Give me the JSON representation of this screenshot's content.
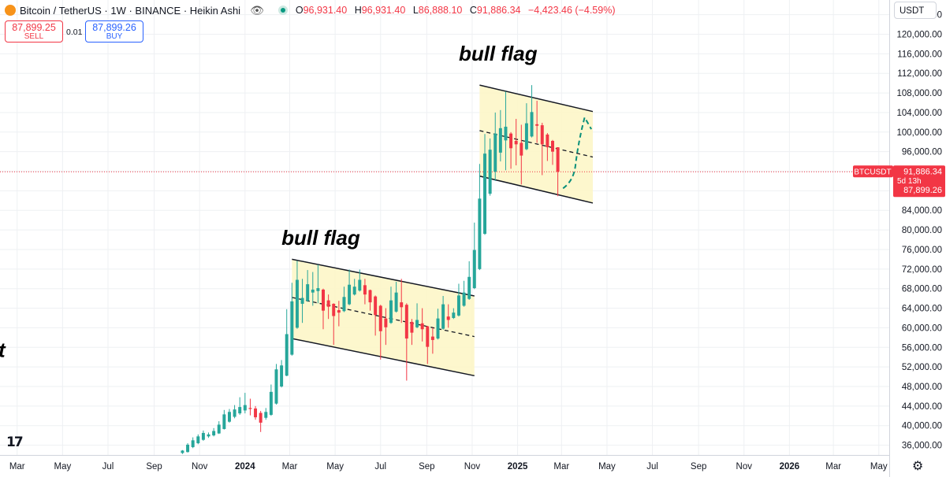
{
  "header": {
    "title": "Bitcoin / TetherUS · 1W · BINANCE · Heikin Ashi",
    "ohlc": [
      {
        "key": "O",
        "value": "96,931.40"
      },
      {
        "key": "H",
        "value": "96,931.40"
      },
      {
        "key": "L",
        "value": "86,888.10"
      },
      {
        "key": "C",
        "value": "91,886.34"
      }
    ],
    "change": "−4,423.46 (−4.59%)",
    "icons": [
      "bitcoin-logo-icon",
      "eye-icon",
      "live-status-icon"
    ]
  },
  "trade": {
    "sell_price": "87,899.25",
    "sell_label": "SELL",
    "spread": "0.01",
    "buy_price": "87,899.26",
    "buy_label": "BUY"
  },
  "currency": "USDT",
  "price_labels": {
    "symbol": "BTCUSDT",
    "current": "91,886.34",
    "countdown": "5d 13h",
    "bid": "87,899.26"
  },
  "colors": {
    "up": "#26a69a",
    "down": "#f23645",
    "channel_fill": "#fdf6c8",
    "projection": "#0a8f7a",
    "price_line": "#f23645"
  },
  "chart_data": {
    "type": "candlestick",
    "style": "Heikin Ashi",
    "interval": "1W",
    "ylim": [
      34000,
      127000
    ],
    "y_ticks": [
      36000,
      40000,
      44000,
      48000,
      52000,
      56000,
      60000,
      64000,
      68000,
      72000,
      76000,
      80000,
      84000,
      88000,
      92000,
      96000,
      100000,
      104000,
      108000,
      112000,
      116000,
      120000,
      124000
    ],
    "y_tick_labels": [
      "36,000.00",
      "40,000.00",
      "44,000.00",
      "48,000.00",
      "52,000.00",
      "56,000.00",
      "60,000.00",
      "64,000.00",
      "68,000.00",
      "72,000.00",
      "76,000.00",
      "80,000.00",
      "84,000.00",
      "88,000.00",
      "92,000.00",
      "96,000.00",
      "100,000.00",
      "104,000.00",
      "108,000.00",
      "112,000.00",
      "116,000.00",
      "120,000.00",
      "124,000.00"
    ],
    "x_range": [
      "2023-02-06",
      "2026-05-15"
    ],
    "x_ticks": [
      {
        "date": "2023-03-01",
        "label": "Mar",
        "bold": false
      },
      {
        "date": "2023-05-01",
        "label": "May",
        "bold": false
      },
      {
        "date": "2023-07-01",
        "label": "Jul",
        "bold": false
      },
      {
        "date": "2023-09-01",
        "label": "Sep",
        "bold": false
      },
      {
        "date": "2023-11-01",
        "label": "Nov",
        "bold": false
      },
      {
        "date": "2024-01-01",
        "label": "2024",
        "bold": true
      },
      {
        "date": "2024-03-01",
        "label": "Mar",
        "bold": false
      },
      {
        "date": "2024-05-01",
        "label": "May",
        "bold": false
      },
      {
        "date": "2024-07-01",
        "label": "Jul",
        "bold": false
      },
      {
        "date": "2024-09-01",
        "label": "Sep",
        "bold": false
      },
      {
        "date": "2024-11-01",
        "label": "Nov",
        "bold": false
      },
      {
        "date": "2025-01-01",
        "label": "2025",
        "bold": true
      },
      {
        "date": "2025-03-01",
        "label": "Mar",
        "bold": false
      },
      {
        "date": "2025-05-01",
        "label": "May",
        "bold": false
      },
      {
        "date": "2025-07-01",
        "label": "Jul",
        "bold": false
      },
      {
        "date": "2025-09-01",
        "label": "Sep",
        "bold": false
      },
      {
        "date": "2025-11-01",
        "label": "Nov",
        "bold": false
      },
      {
        "date": "2026-01-01",
        "label": "2026",
        "bold": true
      },
      {
        "date": "2026-03-01",
        "label": "Mar",
        "bold": false
      },
      {
        "date": "2026-05-01",
        "label": "May",
        "bold": false
      }
    ],
    "current_price": 91886.34,
    "candles": [
      {
        "date": "2023-10-09",
        "o": 34400,
        "h": 35000,
        "l": 34200,
        "c": 34900
      },
      {
        "date": "2023-10-16",
        "o": 34600,
        "h": 36400,
        "l": 34500,
        "c": 36100
      },
      {
        "date": "2023-10-23",
        "o": 35600,
        "h": 37600,
        "l": 35400,
        "c": 37000
      },
      {
        "date": "2023-10-30",
        "o": 36400,
        "h": 38200,
        "l": 36200,
        "c": 37800
      },
      {
        "date": "2023-11-06",
        "o": 37100,
        "h": 39000,
        "l": 36900,
        "c": 38500
      },
      {
        "date": "2023-11-13",
        "o": 37800,
        "h": 38600,
        "l": 37500,
        "c": 38200
      },
      {
        "date": "2023-11-20",
        "o": 38000,
        "h": 39500,
        "l": 37800,
        "c": 38900
      },
      {
        "date": "2023-11-27",
        "o": 38400,
        "h": 40900,
        "l": 38300,
        "c": 40200
      },
      {
        "date": "2023-12-04",
        "o": 39300,
        "h": 43200,
        "l": 39200,
        "c": 42300
      },
      {
        "date": "2023-12-11",
        "o": 40800,
        "h": 43400,
        "l": 40600,
        "c": 42800
      },
      {
        "date": "2023-12-18",
        "o": 41800,
        "h": 44200,
        "l": 41500,
        "c": 43300
      },
      {
        "date": "2023-12-25",
        "o": 42500,
        "h": 45800,
        "l": 42200,
        "c": 43800
      },
      {
        "date": "2024-01-01",
        "o": 43100,
        "h": 46700,
        "l": 42500,
        "c": 44200
      },
      {
        "date": "2024-01-08",
        "o": 43600,
        "h": 45500,
        "l": 42100,
        "c": 43400
      },
      {
        "date": "2024-01-15",
        "o": 43500,
        "h": 44000,
        "l": 41200,
        "c": 41700
      },
      {
        "date": "2024-01-22",
        "o": 42600,
        "h": 43000,
        "l": 38700,
        "c": 40600
      },
      {
        "date": "2024-01-29",
        "o": 41600,
        "h": 43600,
        "l": 41200,
        "c": 42800
      },
      {
        "date": "2024-02-05",
        "o": 42200,
        "h": 48400,
        "l": 42000,
        "c": 46900
      },
      {
        "date": "2024-02-12",
        "o": 44500,
        "h": 52600,
        "l": 44300,
        "c": 51500
      },
      {
        "date": "2024-02-19",
        "o": 48000,
        "h": 53400,
        "l": 47800,
        "c": 52300
      },
      {
        "date": "2024-02-26",
        "o": 50200,
        "h": 63800,
        "l": 50100,
        "c": 58700
      },
      {
        "date": "2024-03-04",
        "o": 54500,
        "h": 69200,
        "l": 54300,
        "c": 65400
      },
      {
        "date": "2024-03-11",
        "o": 60000,
        "h": 73700,
        "l": 59800,
        "c": 69800
      },
      {
        "date": "2024-03-18",
        "o": 64900,
        "h": 70000,
        "l": 61000,
        "c": 66100
      },
      {
        "date": "2024-03-25",
        "o": 65500,
        "h": 71800,
        "l": 65300,
        "c": 68900
      },
      {
        "date": "2024-04-01",
        "o": 67200,
        "h": 71400,
        "l": 64500,
        "c": 67800
      },
      {
        "date": "2024-04-08",
        "o": 67500,
        "h": 72900,
        "l": 65000,
        "c": 68100
      },
      {
        "date": "2024-04-15",
        "o": 67800,
        "h": 68000,
        "l": 59700,
        "c": 63500
      },
      {
        "date": "2024-04-22",
        "o": 65600,
        "h": 66800,
        "l": 61800,
        "c": 64300
      },
      {
        "date": "2024-04-29",
        "o": 64900,
        "h": 65000,
        "l": 56500,
        "c": 62400
      },
      {
        "date": "2024-05-06",
        "o": 63600,
        "h": 65500,
        "l": 60300,
        "c": 63100
      },
      {
        "date": "2024-05-13",
        "o": 63400,
        "h": 68400,
        "l": 63200,
        "c": 66300
      },
      {
        "date": "2024-05-20",
        "o": 64800,
        "h": 71900,
        "l": 64600,
        "c": 68800
      },
      {
        "date": "2024-05-27",
        "o": 66800,
        "h": 70000,
        "l": 66600,
        "c": 68400
      },
      {
        "date": "2024-06-03",
        "o": 67600,
        "h": 71900,
        "l": 67400,
        "c": 69800
      },
      {
        "date": "2024-06-10",
        "o": 68700,
        "h": 70000,
        "l": 64800,
        "c": 66800
      },
      {
        "date": "2024-06-17",
        "o": 67700,
        "h": 67800,
        "l": 63500,
        "c": 65200
      },
      {
        "date": "2024-06-24",
        "o": 66400,
        "h": 66600,
        "l": 58400,
        "c": 62600
      },
      {
        "date": "2024-07-01",
        "o": 64500,
        "h": 64700,
        "l": 53500,
        "c": 59300
      },
      {
        "date": "2024-07-08",
        "o": 61900,
        "h": 64000,
        "l": 56500,
        "c": 60100
      },
      {
        "date": "2024-07-15",
        "o": 61000,
        "h": 68400,
        "l": 60800,
        "c": 65600
      },
      {
        "date": "2024-07-22",
        "o": 63300,
        "h": 69400,
        "l": 63100,
        "c": 67200
      },
      {
        "date": "2024-07-29",
        "o": 65200,
        "h": 70000,
        "l": 61000,
        "c": 64200
      },
      {
        "date": "2024-08-05",
        "o": 64700,
        "h": 65000,
        "l": 49200,
        "c": 57800
      },
      {
        "date": "2024-08-12",
        "o": 61200,
        "h": 61800,
        "l": 56500,
        "c": 59000
      },
      {
        "date": "2024-08-19",
        "o": 60100,
        "h": 65000,
        "l": 59900,
        "c": 61600
      },
      {
        "date": "2024-08-26",
        "o": 60900,
        "h": 64000,
        "l": 57200,
        "c": 59700
      },
      {
        "date": "2024-09-02",
        "o": 60300,
        "h": 60400,
        "l": 52600,
        "c": 56100
      },
      {
        "date": "2024-09-09",
        "o": 58200,
        "h": 60000,
        "l": 54700,
        "c": 57500
      },
      {
        "date": "2024-09-16",
        "o": 57800,
        "h": 63900,
        "l": 57600,
        "c": 61900
      },
      {
        "date": "2024-09-23",
        "o": 59800,
        "h": 66500,
        "l": 59600,
        "c": 64800
      },
      {
        "date": "2024-09-30",
        "o": 62300,
        "h": 64800,
        "l": 60000,
        "c": 61600
      },
      {
        "date": "2024-10-07",
        "o": 62000,
        "h": 64000,
        "l": 61800,
        "c": 63100
      },
      {
        "date": "2024-10-14",
        "o": 62500,
        "h": 69000,
        "l": 62300,
        "c": 66600
      },
      {
        "date": "2024-10-21",
        "o": 64500,
        "h": 69600,
        "l": 64300,
        "c": 67200
      },
      {
        "date": "2024-10-28",
        "o": 65900,
        "h": 73600,
        "l": 65700,
        "c": 70400
      },
      {
        "date": "2024-11-04",
        "o": 68100,
        "h": 81500,
        "l": 67900,
        "c": 75900
      },
      {
        "date": "2024-11-11",
        "o": 72000,
        "h": 93500,
        "l": 71800,
        "c": 86400
      },
      {
        "date": "2024-11-18",
        "o": 79200,
        "h": 99600,
        "l": 79000,
        "c": 95600
      },
      {
        "date": "2024-11-25",
        "o": 87400,
        "h": 98700,
        "l": 87000,
        "c": 96400
      },
      {
        "date": "2024-12-02",
        "o": 91900,
        "h": 104000,
        "l": 90000,
        "c": 99700
      },
      {
        "date": "2024-12-09",
        "o": 95800,
        "h": 104500,
        "l": 94000,
        "c": 100800
      },
      {
        "date": "2024-12-16",
        "o": 98300,
        "h": 108300,
        "l": 92200,
        "c": 101100
      },
      {
        "date": "2024-12-23",
        "o": 99700,
        "h": 100000,
        "l": 92500,
        "c": 96700
      },
      {
        "date": "2024-12-30",
        "o": 98200,
        "h": 102700,
        "l": 93200,
        "c": 97500
      },
      {
        "date": "2025-01-06",
        "o": 97800,
        "h": 101500,
        "l": 89300,
        "c": 95200
      },
      {
        "date": "2025-01-13",
        "o": 96500,
        "h": 105900,
        "l": 96300,
        "c": 101800
      },
      {
        "date": "2025-01-20",
        "o": 99100,
        "h": 109600,
        "l": 98900,
        "c": 104100
      },
      {
        "date": "2025-01-27",
        "o": 101600,
        "h": 106400,
        "l": 97800,
        "c": 101300
      },
      {
        "date": "2025-02-03",
        "o": 101400,
        "h": 101900,
        "l": 91200,
        "c": 97500
      },
      {
        "date": "2025-02-10",
        "o": 99500,
        "h": 99800,
        "l": 94100,
        "c": 96900
      },
      {
        "date": "2025-02-17",
        "o": 98200,
        "h": 98400,
        "l": 93300,
        "c": 96000
      },
      {
        "date": "2025-02-24",
        "o": 96900,
        "h": 96900,
        "l": 86900,
        "c": 91900
      }
    ],
    "overlays": {
      "labels": [
        "bull flag",
        "bull flag",
        "t"
      ]
    }
  }
}
